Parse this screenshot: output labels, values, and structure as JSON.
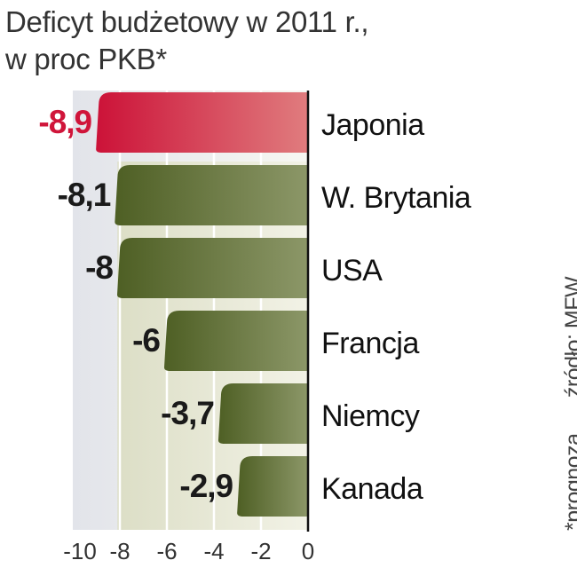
{
  "title": {
    "line1": "Deficyt budżetowy w 2011 r.,",
    "line2": "w proc PKB*"
  },
  "source": "źródło: MFW",
  "note": "*prognoza",
  "colors": {
    "highlight": "#d0153a",
    "bar": "#56682a",
    "highlight_label": "#d0153a",
    "label": "#1a1a1a"
  },
  "chart_data": {
    "type": "bar",
    "orientation": "horizontal",
    "categories": [
      "Japonia",
      "W. Brytania",
      "USA",
      "Francja",
      "Niemcy",
      "Kanada"
    ],
    "values": [
      -8.9,
      -8.1,
      -8,
      -6,
      -3.7,
      -2.9
    ],
    "value_labels": [
      "-8,9",
      "-8,1",
      "-8",
      "-6",
      "-3,7",
      "-2,9"
    ],
    "highlight": "Japonia",
    "xlim": [
      -10,
      0
    ],
    "xticks": [
      -10,
      -8,
      -6,
      -4,
      -2,
      0
    ],
    "xtick_labels": [
      "-10",
      "-8",
      "-6",
      "-4",
      "-2",
      "0"
    ],
    "grid": true
  }
}
